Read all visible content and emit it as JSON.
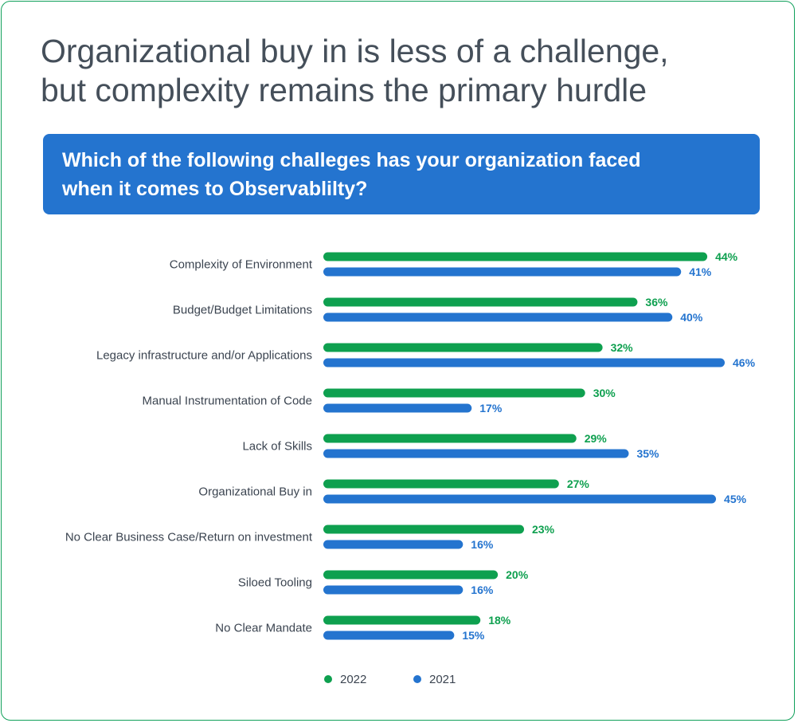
{
  "title_lines": [
    "Organizational buy in is less of a challenge,",
    "but complexity remains the primary hurdle"
  ],
  "question_lines": [
    "Which of the following challeges has your organization faced",
    "when it comes to Observablilty?"
  ],
  "colors": {
    "series_2022": "#0ea04f",
    "series_2021": "#2474cf",
    "border": "#10a05a",
    "banner": "#2474cf",
    "title": "#454f5a",
    "category_text": "#3b4450"
  },
  "chart_data": {
    "type": "bar",
    "orientation": "horizontal",
    "categories": [
      "Complexity of Environment",
      "Budget/Budget Limitations",
      "Legacy infrastructure and/or Applications",
      "Manual Instrumentation of Code",
      "Lack of Skills",
      "Organizational Buy in",
      "No Clear Business Case/Return on investment",
      "Siloed Tooling",
      "No Clear Mandate"
    ],
    "series": [
      {
        "name": "2022",
        "values": [
          44,
          36,
          32,
          30,
          29,
          27,
          23,
          20,
          18
        ],
        "labels": [
          "44%",
          "36%",
          "32%",
          "30%",
          "29%",
          "27%",
          "23%",
          "20%",
          "18%"
        ]
      },
      {
        "name": "2021",
        "values": [
          41,
          40,
          46,
          17,
          35,
          45,
          16,
          16,
          15
        ],
        "labels": [
          "41%",
          "40%",
          "46%",
          "17%",
          "35%",
          "45%",
          "16%",
          "16%",
          "15%"
        ]
      }
    ],
    "xlim": [
      0,
      46
    ],
    "grid": false,
    "axes_visible": false,
    "legend_position": "bottom"
  }
}
